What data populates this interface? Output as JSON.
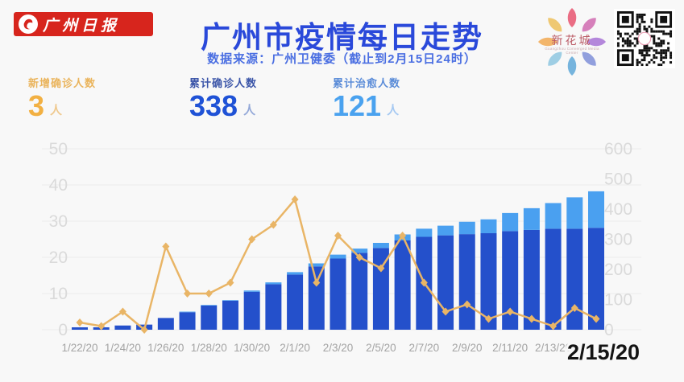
{
  "header": {
    "newspaper_logo": {
      "text": "广州日报",
      "bg_color": "#d7251d"
    },
    "title": "广州市疫情每日走势",
    "title_color": "#2a49da",
    "subtitle": "数据来源：广州卫健委（截止到2月15日24时）",
    "subtitle_color": "#4b6fe2",
    "media_logo": {
      "text": "新花城",
      "subtext": "Guangzhou Converged Media Center"
    }
  },
  "stats": [
    {
      "label": "新增确诊人数",
      "value": "3",
      "unit": "人",
      "label_color": "#eab45c",
      "value_color": "#f2b042"
    },
    {
      "label": "累计确诊人数",
      "value": "338",
      "unit": "人",
      "label_color": "#3b55a8",
      "value_color": "#1f52d6"
    },
    {
      "label": "累计治愈人数",
      "value": "121",
      "unit": "人",
      "label_color": "#5b8cd8",
      "value_color": "#4aa2ef"
    }
  ],
  "chart_data": {
    "type": "bar",
    "subtype": "stacked-bars-with-line-overlay",
    "categories": [
      "1/22/20",
      "1/23/20",
      "1/24/20",
      "1/25/20",
      "1/26/20",
      "1/27/20",
      "1/28/20",
      "1/29/20",
      "1/30/20",
      "1/31/20",
      "2/1/20",
      "2/2/20",
      "2/3/20",
      "2/4/20",
      "2/5/20",
      "2/6/20",
      "2/7/20",
      "2/8/20",
      "2/9/20",
      "2/10/20",
      "2/11/20",
      "2/12/20",
      "2/13/20",
      "2/14/20",
      "2/15/20"
    ],
    "series": [
      {
        "name": "累计确诊人数",
        "kind": "bar",
        "stack": "cumulative",
        "axis": "right",
        "color": "#2450cb",
        "values": [
          2,
          7,
          14,
          17,
          39,
          58,
          80,
          96,
          126,
          151,
          183,
          210,
          236,
          255,
          271,
          296,
          308,
          313,
          317,
          320,
          327,
          331,
          335,
          335,
          338
        ]
      },
      {
        "name": "累计治愈人数",
        "kind": "bar",
        "stack": "cumulative",
        "axis": "right",
        "color": "#4aa0f0",
        "values": [
          0,
          0,
          0,
          0,
          0,
          2,
          2,
          2,
          4,
          6,
          8,
          10,
          13,
          14,
          17,
          20,
          27,
          32,
          41,
          46,
          60,
          72,
          85,
          104,
          121
        ]
      },
      {
        "name": "新增确诊人数",
        "kind": "line",
        "axis": "left",
        "color": "#e9b566",
        "values": [
          2,
          1,
          5,
          0,
          23,
          10,
          10,
          13,
          25,
          29,
          36,
          13,
          26,
          20,
          17,
          26,
          13,
          5,
          7,
          3,
          5,
          3,
          1,
          6,
          3
        ]
      }
    ],
    "left_axis": {
      "range": [
        0,
        50
      ],
      "ticks": [
        50,
        40,
        30,
        20,
        10,
        0
      ],
      "color": "#dadada"
    },
    "right_axis": {
      "range": [
        0,
        600
      ],
      "ticks": [
        600,
        500,
        400,
        300,
        200,
        100,
        0
      ],
      "color": "#dadada"
    },
    "x_axis": {
      "labeled_every": 2,
      "tick_color": "#a3a3a3"
    },
    "highlight_label": "2/15/20",
    "grid": true,
    "legend": "none"
  }
}
